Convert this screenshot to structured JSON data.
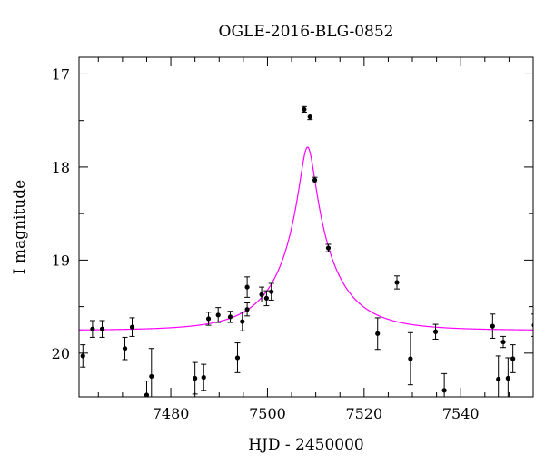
{
  "chart_data": {
    "type": "scatter",
    "title": "OGLE-2016-BLG-0852",
    "xlabel": "HJD - 2450000",
    "ylabel": "I magnitude",
    "xlim": [
      7461,
      7555
    ],
    "ylim": [
      20.47,
      16.82
    ],
    "y_axis_inverted": true,
    "grid": false,
    "legend": "none",
    "x_ticks": [
      7480,
      7500,
      7520,
      7540
    ],
    "x_tick_labels": [
      "7480",
      "7500",
      "7520",
      "7540"
    ],
    "y_ticks": [
      17,
      18,
      19,
      20
    ],
    "y_tick_labels": [
      "17",
      "18",
      "19",
      "20"
    ],
    "x_minor_step": 5,
    "y_minor_step": 0.5,
    "colors": {
      "points": "#000000",
      "model": "#ff00ff",
      "frame": "#000000"
    },
    "model": {
      "type": "paczynski",
      "t0": 7508.3,
      "u0": 0.125,
      "tE": 12.0,
      "I_source": 20.1,
      "I_blend": 21.17
    },
    "series": [
      {
        "points": [
          [
            7461.8,
            20.03,
            0.12
          ],
          [
            7463.8,
            19.74,
            0.09
          ],
          [
            7465.8,
            19.74,
            0.09
          ],
          [
            7470.5,
            19.95,
            0.12
          ],
          [
            7472.0,
            19.72,
            0.1
          ],
          [
            7475.0,
            20.45,
            0.15
          ],
          [
            7476.0,
            20.25,
            0.3
          ],
          [
            7485.0,
            20.27,
            0.17
          ],
          [
            7486.8,
            20.26,
            0.14
          ],
          [
            7487.8,
            19.63,
            0.07
          ],
          [
            7489.8,
            19.59,
            0.08
          ],
          [
            7492.3,
            19.61,
            0.06
          ],
          [
            7493.8,
            20.05,
            0.16
          ],
          [
            7494.8,
            19.66,
            0.1
          ],
          [
            7495.8,
            19.29,
            0.11
          ],
          [
            7495.8,
            19.53,
            0.07
          ],
          [
            7498.8,
            19.37,
            0.08
          ],
          [
            7499.8,
            19.41,
            0.08
          ],
          [
            7500.8,
            19.34,
            0.09
          ],
          [
            7507.6,
            17.38,
            0.03
          ],
          [
            7508.8,
            17.46,
            0.03
          ],
          [
            7509.8,
            18.14,
            0.03
          ],
          [
            7512.6,
            18.87,
            0.04
          ],
          [
            7522.8,
            19.79,
            0.17
          ],
          [
            7526.8,
            19.24,
            0.07
          ],
          [
            7529.6,
            20.06,
            0.28
          ],
          [
            7534.8,
            19.77,
            0.08
          ],
          [
            7536.6,
            20.4,
            0.18
          ],
          [
            7546.6,
            19.71,
            0.13
          ],
          [
            7547.8,
            20.28,
            0.25
          ],
          [
            7548.8,
            19.88,
            0.06
          ],
          [
            7549.8,
            20.27,
            0.22
          ],
          [
            7550.8,
            20.06,
            0.15
          ],
          [
            7555.2,
            19.7,
            0.12
          ]
        ]
      }
    ]
  }
}
